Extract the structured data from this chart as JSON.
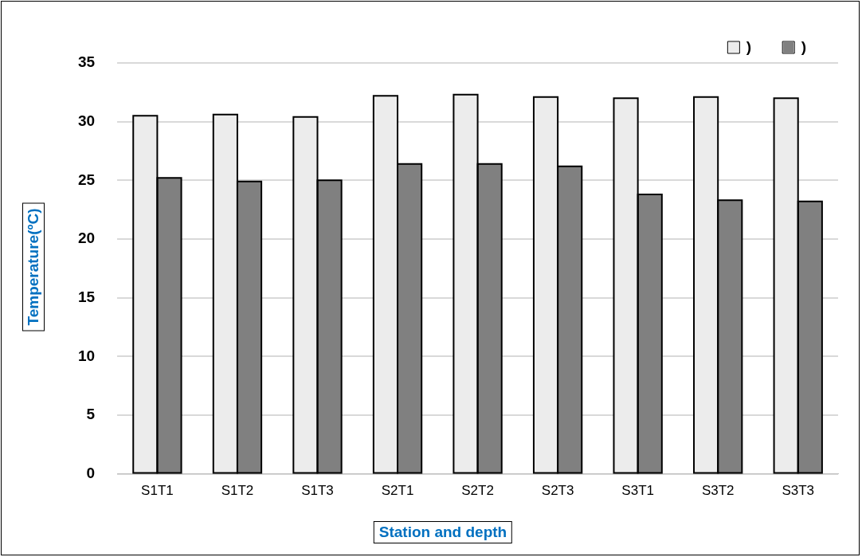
{
  "chart_data": {
    "type": "bar",
    "xlabel": "Station and depth",
    "ylabel": "Temperature(ºC)",
    "categories": [
      "S1T1",
      "S1T2",
      "S1T3",
      "S2T1",
      "S2T2",
      "S2T3",
      "S3T1",
      "S3T2",
      "S3T3"
    ],
    "series": [
      {
        "name": ")",
        "color": "#ececec",
        "values": [
          30.5,
          30.6,
          30.4,
          32.2,
          32.3,
          32.1,
          32.0,
          32.1,
          32.0
        ]
      },
      {
        "name": ")",
        "color": "#808080",
        "values": [
          25.2,
          24.9,
          25.0,
          26.4,
          26.4,
          26.2,
          23.8,
          23.3,
          23.2
        ]
      }
    ],
    "ylim": [
      0,
      35
    ],
    "yticks": [
      0,
      5,
      10,
      15,
      20,
      25,
      30,
      35
    ],
    "grid": "y",
    "legend": "top right"
  }
}
